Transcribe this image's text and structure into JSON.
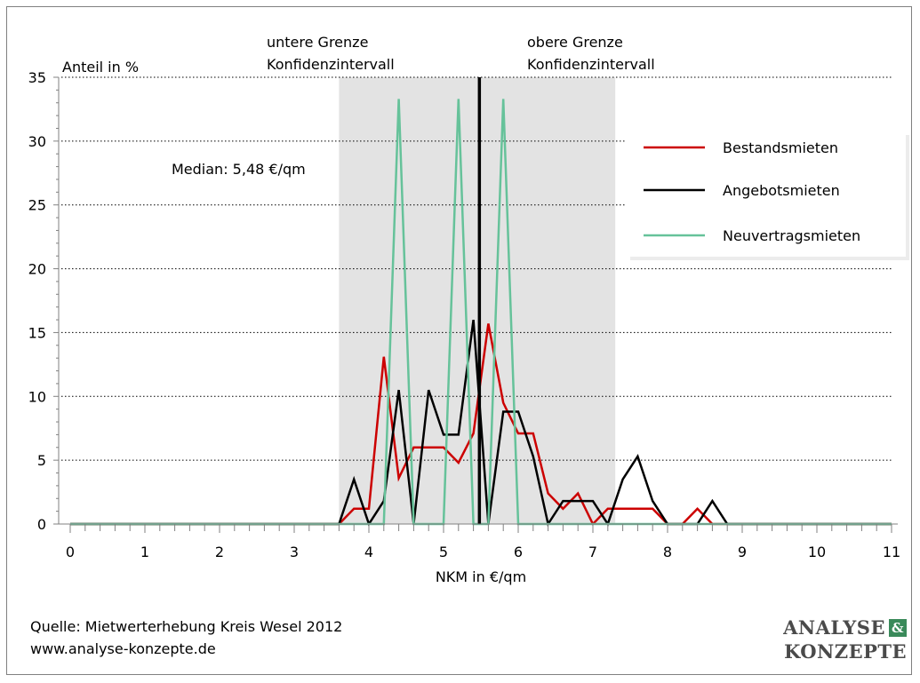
{
  "chart_data": {
    "type": "line",
    "xlabel": "NKM in €/qm",
    "ylabel": "Anteil in %",
    "xlim": [
      0,
      11
    ],
    "ylim": [
      0,
      35
    ],
    "x_ticks": [
      0,
      1,
      2,
      3,
      4,
      5,
      6,
      7,
      8,
      9,
      10,
      11
    ],
    "y_ticks": [
      0,
      5,
      10,
      15,
      20,
      25,
      30,
      35
    ],
    "grid": "horizontal dotted",
    "legend_position": "right",
    "confidence_band": [
      3.6,
      7.3
    ],
    "median_x": 5.48,
    "annotations": {
      "lower": [
        "untere Grenze",
        "Konfidenzintervall"
      ],
      "upper": [
        "obere Grenze",
        "Konfidenzintervall"
      ],
      "median": "Median: 5,48 €/qm"
    },
    "series": [
      {
        "name": "Bestandsmieten",
        "color": "#cc0000",
        "x": [
          0,
          3.6,
          3.8,
          4.0,
          4.2,
          4.4,
          4.6,
          4.8,
          5.0,
          5.2,
          5.4,
          5.6,
          5.8,
          6.0,
          6.2,
          6.4,
          6.6,
          6.8,
          7.0,
          7.2,
          7.4,
          7.6,
          7.8,
          8.0,
          8.2,
          8.4,
          8.6,
          11
        ],
        "values": [
          0,
          0,
          1.2,
          1.2,
          13.1,
          3.6,
          6.0,
          6.0,
          6.0,
          4.8,
          7.1,
          15.7,
          9.5,
          7.1,
          7.1,
          2.4,
          1.2,
          2.4,
          0,
          1.2,
          1.2,
          1.2,
          1.2,
          0,
          0,
          1.2,
          0,
          0
        ]
      },
      {
        "name": "Angebotsmieten",
        "color": "#000000",
        "x": [
          0,
          3.6,
          3.8,
          4.0,
          4.2,
          4.4,
          4.6,
          4.8,
          5.0,
          5.2,
          5.4,
          5.6,
          5.8,
          6.0,
          6.2,
          6.4,
          6.6,
          6.8,
          7.0,
          7.2,
          7.4,
          7.6,
          7.8,
          8.0,
          8.2,
          8.4,
          8.6,
          8.8,
          11
        ],
        "values": [
          0,
          0,
          3.5,
          0,
          1.8,
          10.5,
          0,
          10.5,
          7.0,
          7.0,
          16.0,
          0,
          8.8,
          8.8,
          5.3,
          0,
          1.8,
          1.8,
          1.8,
          0,
          3.5,
          5.3,
          1.8,
          0,
          0,
          0,
          1.8,
          0,
          0
        ]
      },
      {
        "name": "Neuvertragsmieten",
        "color": "#66c29a",
        "x": [
          0,
          4.2,
          4.4,
          4.6,
          5.0,
          5.2,
          5.4,
          5.6,
          5.8,
          6.0,
          11
        ],
        "values": [
          0,
          0,
          33.3,
          0,
          0,
          33.3,
          0,
          0,
          33.3,
          0,
          0
        ]
      }
    ]
  },
  "footer": {
    "source": "Quelle: Mietwerterhebung Kreis Wesel 2012",
    "website": "www.analyse-konzepte.de"
  },
  "logo": {
    "line1": "ANALYSE",
    "amp": "&",
    "line2": "KONZEPTE"
  }
}
